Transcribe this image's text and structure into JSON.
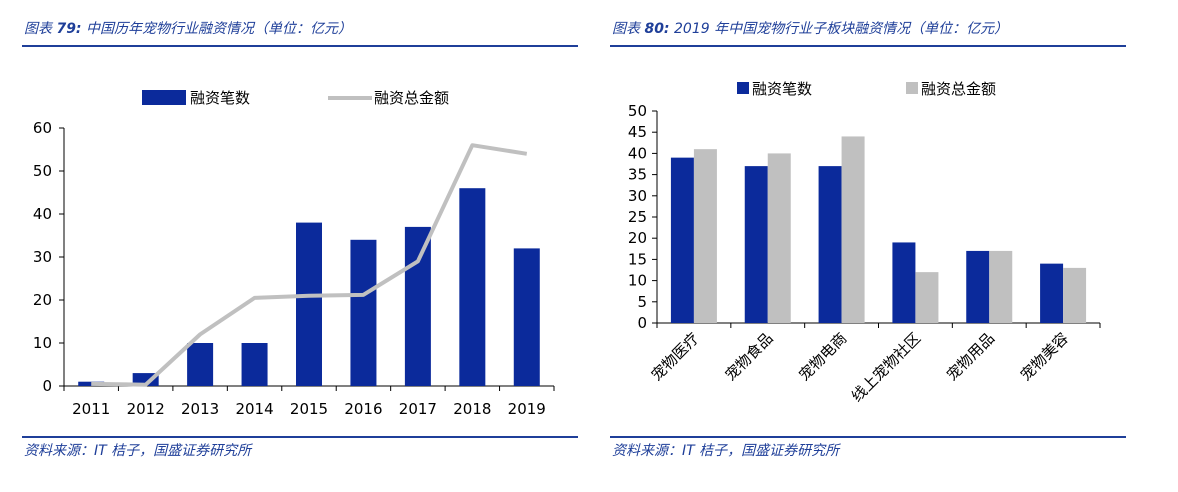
{
  "colors": {
    "bar_primary": "#0b2a9b",
    "secondary": "#c0c0c0",
    "accent_text": "#1f3f99",
    "axis": "#000000"
  },
  "charts": [
    {
      "figure_label": "图表",
      "figure_number": "79:",
      "title": "中国历年宠物行业融资情况（单位：亿元）",
      "source": "资料来源：IT 桔子，国盛证券研究所"
    },
    {
      "figure_label": "图表",
      "figure_number": "80:",
      "title": "2019 年中国宠物行业子板块融资情况（单位：亿元）",
      "source": "资料来源：IT 桔子，国盛证券研究所"
    }
  ],
  "chart_data": [
    {
      "type": "bar",
      "title": "中国历年宠物行业融资情况（单位：亿元）",
      "categories": [
        "2011",
        "2012",
        "2013",
        "2014",
        "2015",
        "2016",
        "2017",
        "2018",
        "2019"
      ],
      "series": [
        {
          "name": "融资笔数",
          "kind": "bar",
          "values": [
            1,
            3,
            10,
            10,
            38,
            34,
            37,
            46,
            32
          ]
        },
        {
          "name": "融资总金额",
          "kind": "line",
          "values": [
            0.5,
            0.3,
            12,
            20.5,
            21,
            21.2,
            29,
            56,
            54
          ]
        }
      ],
      "xlabel": "",
      "ylabel": "",
      "ylim": [
        0,
        60
      ],
      "yticks": [
        0,
        10,
        20,
        30,
        40,
        50,
        60
      ],
      "legend_position": "top"
    },
    {
      "type": "bar",
      "title": "2019 年中国宠物行业子板块融资情况（单位：亿元）",
      "categories": [
        "宠物医疗",
        "宠物食品",
        "宠物电商",
        "线上宠物社区",
        "宠物用品",
        "宠物美容"
      ],
      "series": [
        {
          "name": "融资笔数",
          "kind": "bar",
          "values": [
            39,
            37,
            37,
            19,
            17,
            14
          ]
        },
        {
          "name": "融资总金额",
          "kind": "bar",
          "values": [
            41,
            40,
            44,
            12,
            17,
            13
          ]
        }
      ],
      "xlabel": "",
      "ylabel": "",
      "ylim": [
        0,
        50
      ],
      "yticks": [
        0,
        5,
        10,
        15,
        20,
        25,
        30,
        35,
        40,
        45,
        50
      ],
      "legend_position": "top"
    }
  ]
}
